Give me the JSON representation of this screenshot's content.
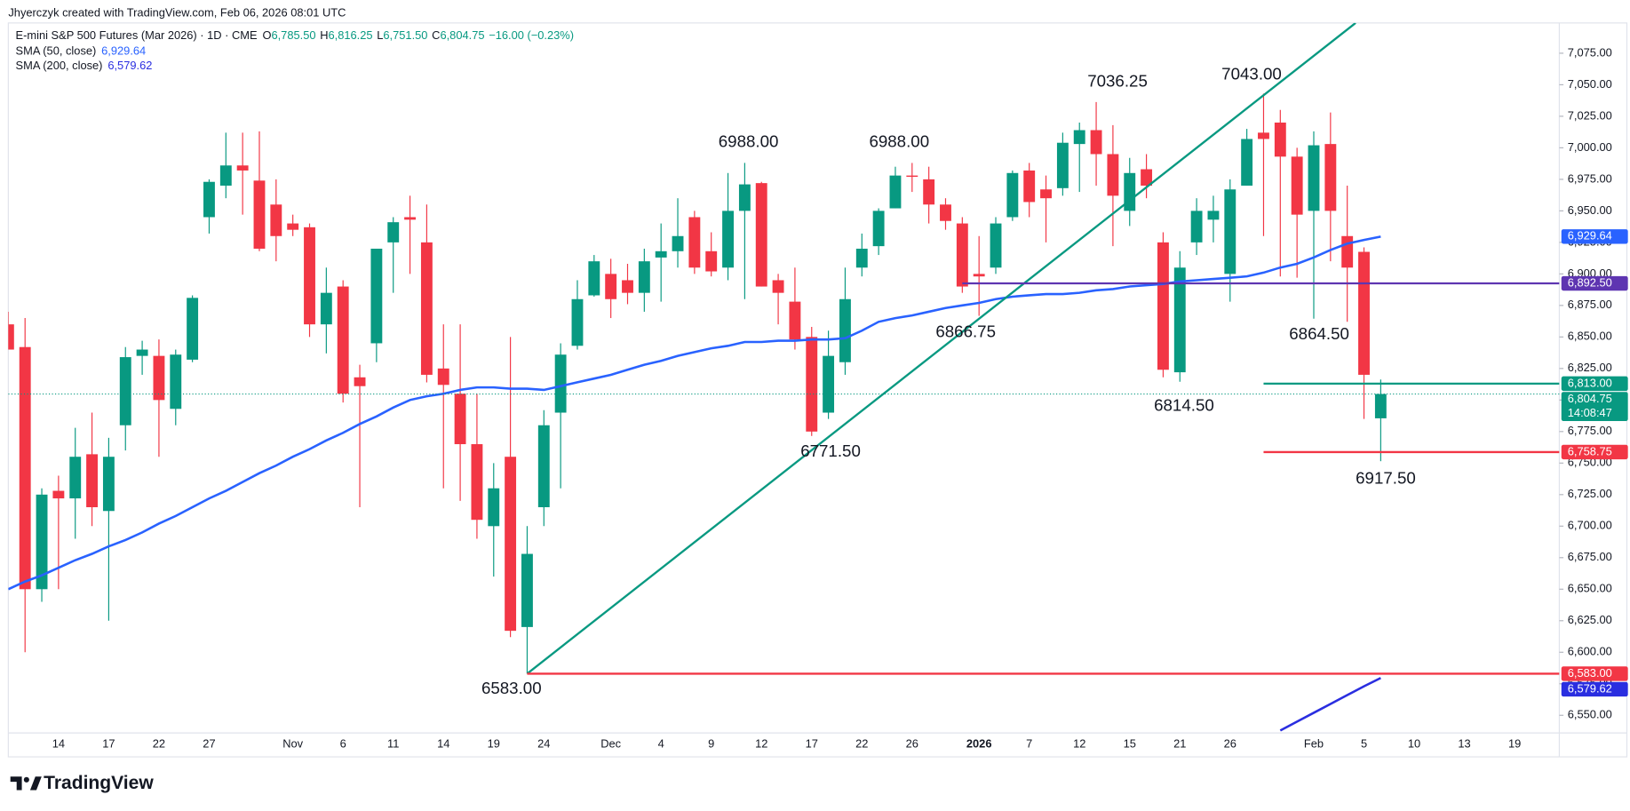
{
  "header": {
    "credit": "Jhyerczyk created with TradingView.com, Feb 06, 2026 08:01 UTC",
    "symbol": "E-mini S&P 500 Futures (Mar 2026) · 1D · CME",
    "ohlc": [
      {
        "key": "O",
        "value": "6,785.50"
      },
      {
        "key": "H",
        "value": "6,816.25"
      },
      {
        "key": "L",
        "value": "6,751.50"
      },
      {
        "key": "C",
        "value": "6,804.75"
      }
    ],
    "change": "−16.00 (−0.23%)",
    "brand": "TradingView"
  },
  "chart_data": {
    "type": "candlestick",
    "up_color": "#089981",
    "down_color": "#f23645",
    "categories": [
      null,
      null,
      null,
      "14",
      null,
      null,
      "17",
      null,
      null,
      "22",
      null,
      null,
      "27",
      null,
      null,
      null,
      null,
      "Nov",
      null,
      null,
      "6",
      null,
      null,
      "11",
      null,
      null,
      "14",
      null,
      null,
      "19",
      null,
      null,
      "24",
      null,
      null,
      null,
      "Dec",
      null,
      null,
      "4",
      null,
      null,
      "9",
      null,
      null,
      "12",
      null,
      null,
      "17",
      null,
      null,
      "22",
      null,
      null,
      "26",
      null,
      null,
      null,
      "2026",
      null,
      null,
      "7",
      null,
      null,
      "12",
      null,
      null,
      "15",
      null,
      null,
      "21",
      null,
      null,
      "26",
      null,
      null,
      null,
      null,
      "Feb",
      null,
      null,
      "5",
      null,
      null,
      "10",
      null,
      null,
      "13",
      null,
      null,
      "19"
    ],
    "open": [
      6860,
      6842,
      6650,
      6728,
      6722,
      6757,
      6712,
      6780,
      6835,
      6835,
      6793,
      6832,
      6945,
      6970,
      6986,
      6974,
      6955,
      6940,
      6937,
      6860,
      6890,
      6818,
      6845,
      6925,
      6945,
      6925,
      6825,
      6805,
      6765,
      6700,
      6755,
      6620,
      6715,
      6790,
      6843,
      6883,
      6900,
      6895,
      6885,
      6913,
      6918,
      6945,
      6918,
      6905,
      6950,
      6972,
      6895,
      6878,
      6850,
      6790,
      6830,
      6905,
      6922,
      6952,
      6978,
      6975,
      6955,
      6940,
      6900,
      6905,
      6945,
      6982,
      6967,
      6968,
      7003,
      7014,
      6995,
      6950,
      6983,
      6925,
      6822,
      6925,
      6943,
      6900,
      6970,
      7012,
      7020,
      6993,
      6950,
      7003,
      6930,
      6917.5,
      6785.5,
      null,
      null,
      null,
      null,
      null,
      null,
      null,
      null
    ],
    "high": [
      6870,
      6865,
      6730,
      6740,
      6778,
      6790,
      6770,
      6842,
      6847,
      6848,
      6840,
      6883,
      6975,
      7012,
      7012,
      7013,
      6975,
      6947,
      6940,
      6905,
      6895,
      6828,
      6920,
      6945,
      6962,
      6955,
      6860,
      6860,
      6805,
      6750,
      6850,
      6700,
      6792,
      6845,
      6895,
      6915,
      6912,
      6908,
      6920,
      6940,
      6960,
      6950,
      6933,
      6980,
      6988,
      6973,
      6900,
      6905,
      6858,
      6855,
      6905,
      6932,
      6952,
      6985,
      6988,
      6985,
      6960,
      6945,
      6930,
      6945,
      6982,
      6988,
      6978,
      7012,
      7020,
      7036.25,
      7018,
      6992,
      6995,
      6933,
      6918,
      6960,
      6962,
      6975,
      7015,
      7043,
      7030,
      7000,
      7013,
      7028,
      6970,
      6921,
      6816.25,
      null,
      null,
      null,
      null,
      null,
      null,
      null,
      null
    ],
    "low": [
      6840,
      6600,
      6640,
      6650,
      6690,
      6700,
      6625,
      6760,
      6820,
      6755,
      6780,
      6830,
      6932,
      6960,
      6947,
      6918,
      6910,
      6930,
      6850,
      6837,
      6798,
      6715,
      6830,
      6885,
      6900,
      6814,
      6730,
      6720,
      6690,
      6660,
      6612,
      6583,
      6700,
      6730,
      6840,
      6882,
      6865,
      6876,
      6870,
      6878,
      6905,
      6900,
      6898,
      6895,
      6880,
      6890,
      6860,
      6840,
      6771.5,
      6785,
      6820,
      6898,
      6915,
      6952,
      6965,
      6940,
      6935,
      6885,
      6866.75,
      6900,
      6942,
      6945,
      6925,
      6962,
      6965,
      6970,
      6922,
      6938,
      6960,
      6818,
      6814.5,
      6915,
      6925,
      6878,
      6970,
      6930,
      6898,
      6897,
      6864.5,
      6910,
      6862,
      6785,
      6751.5,
      null,
      null,
      null,
      null,
      null,
      null,
      null,
      null
    ],
    "close": [
      6840,
      6650,
      6725,
      6722,
      6755,
      6715,
      6755,
      6834,
      6840,
      6800,
      6836,
      6881,
      6973,
      6986,
      6982,
      6920,
      6930,
      6935,
      6860,
      6885,
      6805,
      6811,
      6920,
      6941,
      6943,
      6820,
      6812,
      6765,
      6705,
      6730,
      6617,
      6678,
      6780,
      6836,
      6880,
      6910,
      6880,
      6885,
      6910,
      6918,
      6930,
      6905,
      6902,
      6950,
      6971,
      6890,
      6885,
      6848,
      6775,
      6835,
      6880,
      6920,
      6950,
      6978,
      6977,
      6955,
      6942,
      6890,
      6898,
      6940,
      6980,
      6957,
      6960,
      7004,
      7014,
      6995,
      6962,
      6980,
      6970,
      6824,
      6905,
      6950,
      6950,
      6967,
      7007,
      7007,
      6993,
      6947,
      7002,
      6950,
      6905,
      6820,
      6804.75,
      null,
      null,
      null,
      null,
      null,
      null,
      null,
      null
    ],
    "lines": [
      {
        "name": "SMA (50, close)",
        "color": "#2962ff",
        "value_label": "6,929.64",
        "values": [
          6650,
          6656,
          6661,
          6667,
          6673,
          6678,
          6684,
          6689,
          6695,
          6702,
          6708,
          6715,
          6722,
          6728,
          6735,
          6742,
          6748,
          6755,
          6761,
          6768,
          6774,
          6781,
          6787,
          6794,
          6800,
          6803,
          6805,
          6808,
          6810,
          6810,
          6809,
          6809,
          6808,
          6811,
          6814,
          6817,
          6820,
          6824,
          6828,
          6831,
          6835,
          6838,
          6841,
          6843,
          6846,
          6846,
          6847,
          6847,
          6848,
          6848,
          6849,
          6855,
          6862,
          6865,
          6867,
          6870,
          6873,
          6875,
          6877,
          6880,
          6882,
          6883,
          6884,
          6884,
          6885,
          6887,
          6888,
          6890,
          6891,
          6892,
          6894,
          6895,
          6896,
          6897,
          6898,
          6901,
          6905,
          6908,
          6913,
          6919,
          6924,
          6927,
          6929.64,
          null,
          null,
          null,
          null,
          null,
          null,
          null,
          null
        ]
      },
      {
        "name": "SMA (200, close)",
        "color": "#2a2ee0",
        "value_label": "6,579.62",
        "values": [
          null,
          null,
          null,
          null,
          null,
          null,
          null,
          null,
          null,
          null,
          null,
          null,
          null,
          null,
          null,
          null,
          null,
          null,
          null,
          null,
          null,
          null,
          null,
          null,
          null,
          null,
          null,
          null,
          null,
          null,
          null,
          null,
          null,
          null,
          null,
          null,
          null,
          null,
          null,
          null,
          null,
          null,
          null,
          null,
          null,
          null,
          null,
          null,
          null,
          null,
          null,
          null,
          null,
          null,
          null,
          null,
          null,
          null,
          null,
          null,
          null,
          null,
          null,
          null,
          null,
          null,
          null,
          null,
          null,
          null,
          null,
          null,
          null,
          null,
          null,
          null,
          6538,
          6545,
          6552,
          6559,
          6566,
          6573,
          6579.62,
          null,
          null,
          null,
          null,
          null,
          null,
          null,
          null
        ]
      }
    ],
    "levels": [
      {
        "value": 6892.5,
        "label": "6,892.50",
        "color": "#5e35b1",
        "start": 57
      },
      {
        "value": 6813,
        "label": "6,813.00",
        "color": "#089981",
        "start": 75
      },
      {
        "value": 6758.75,
        "label": "6,758.75",
        "color": "#f23645",
        "start": 75
      },
      {
        "value": 6583,
        "label": "6,583.00",
        "color": "#f23645",
        "start": 31
      }
    ],
    "current": {
      "value": 6804.75,
      "label": "6,804.75",
      "countdown": "14:08:47",
      "color": "#089981"
    },
    "trendline": {
      "start_index": 31,
      "start_value": 6583,
      "end_index": 80.5,
      "end_value": 7099,
      "color": "#089981"
    },
    "annotations": [
      "6988.00",
      "6988.00",
      "7036.25",
      "7043.00",
      "6866.75",
      "6864.50",
      "6814.50",
      "6771.50",
      "6917.50",
      "6583.00"
    ],
    "ylim": [
      6536,
      7099
    ],
    "yticks": [
      {
        "value": 6550,
        "label": "6,550.00"
      },
      {
        "value": 6575,
        "label": "6,575.00"
      },
      {
        "value": 6600,
        "label": "6,600.00"
      },
      {
        "value": 6625,
        "label": "6,625.00"
      },
      {
        "value": 6650,
        "label": "6,650.00"
      },
      {
        "value": 6675,
        "label": "6,675.00"
      },
      {
        "value": 6700,
        "label": "6,700.00"
      },
      {
        "value": 6725,
        "label": "6,725.00"
      },
      {
        "value": 6750,
        "label": "6,750.00"
      },
      {
        "value": 6775,
        "label": "6,775.00"
      },
      {
        "value": 6800,
        "label": "6,800.00"
      },
      {
        "value": 6825,
        "label": "6,825.00"
      },
      {
        "value": 6850,
        "label": "6,850.00"
      },
      {
        "value": 6875,
        "label": "6,875.00"
      },
      {
        "value": 6900,
        "label": "6,900.00"
      },
      {
        "value": 6925,
        "label": "6,925.00"
      },
      {
        "value": 6950,
        "label": "6,950.00"
      },
      {
        "value": 6975,
        "label": "6,975.00"
      },
      {
        "value": 7000,
        "label": "7,000.00"
      },
      {
        "value": 7025,
        "label": "7,025.00"
      },
      {
        "value": 7050,
        "label": "7,050.00"
      },
      {
        "value": 7075,
        "label": "7,075.00"
      }
    ],
    "grid": false
  }
}
